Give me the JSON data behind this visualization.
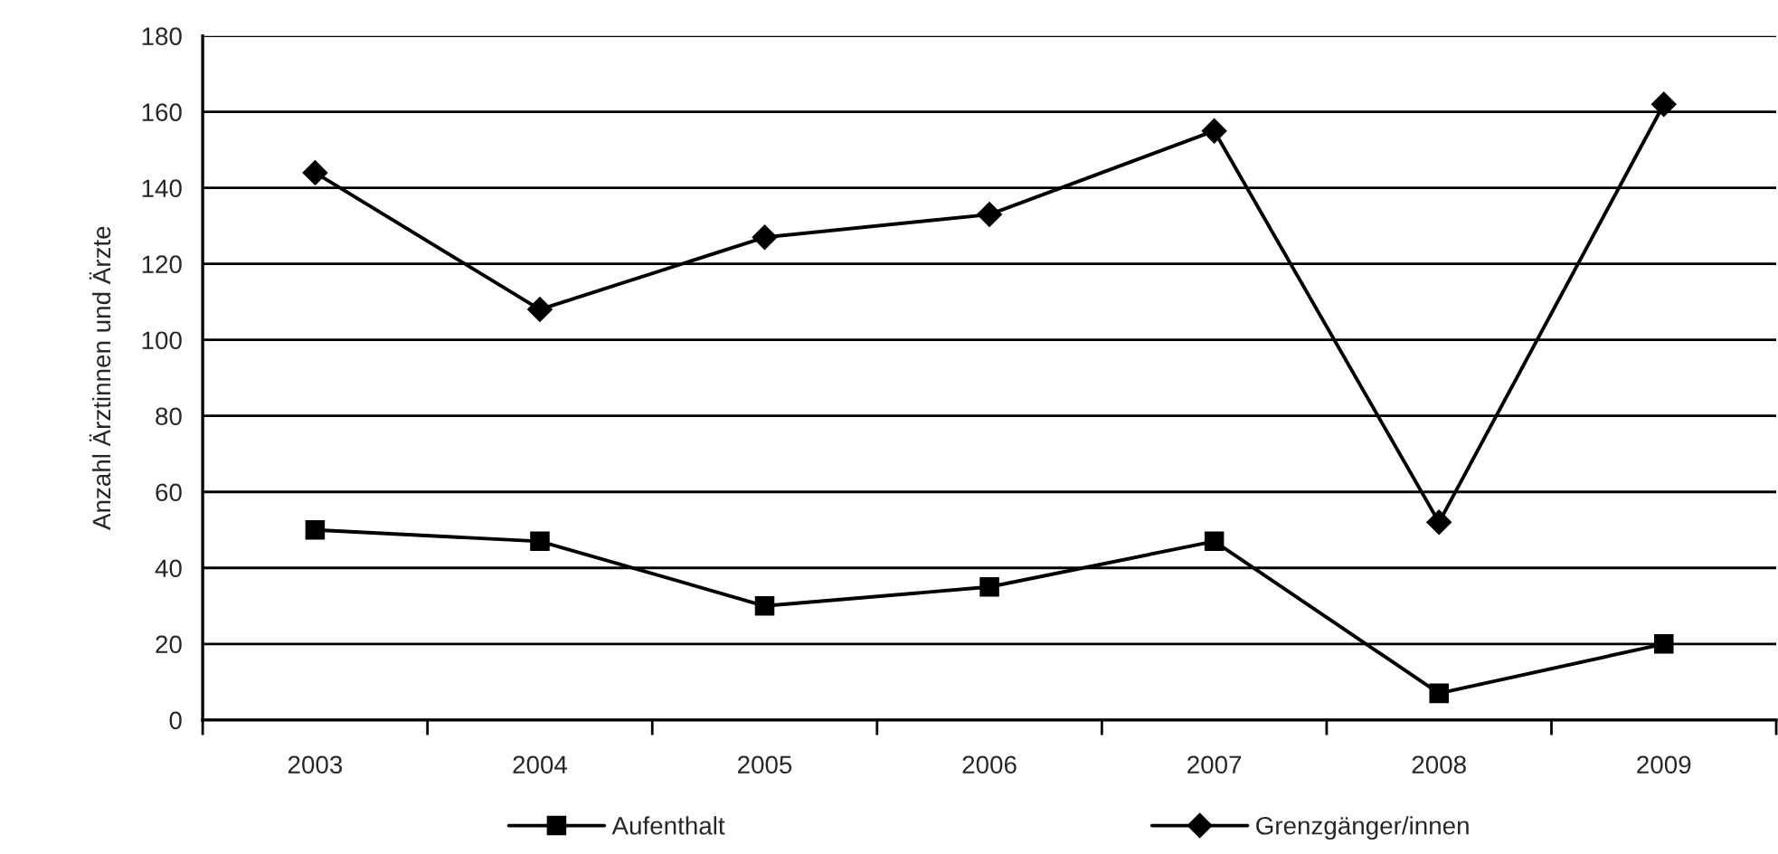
{
  "chart_data": {
    "type": "line",
    "categories": [
      "2003",
      "2004",
      "2005",
      "2006",
      "2007",
      "2008",
      "2009"
    ],
    "series": [
      {
        "name": "Aufenthalt",
        "color": "#000000",
        "marker": "square",
        "values": [
          50,
          47,
          30,
          35,
          47,
          7,
          20
        ]
      },
      {
        "name": "Grenzgänger/innen",
        "color": "#000000",
        "marker": "diamond",
        "values": [
          144,
          108,
          127,
          133,
          155,
          52,
          162
        ]
      }
    ],
    "ylabel": "Anzahl Ärztinnen und Ärzte",
    "ylim": [
      0,
      180
    ],
    "yticks": [
      0,
      20,
      40,
      60,
      80,
      100,
      120,
      140,
      160,
      180
    ],
    "grid": "y",
    "legend": "bottom",
    "line_style": "solid"
  }
}
